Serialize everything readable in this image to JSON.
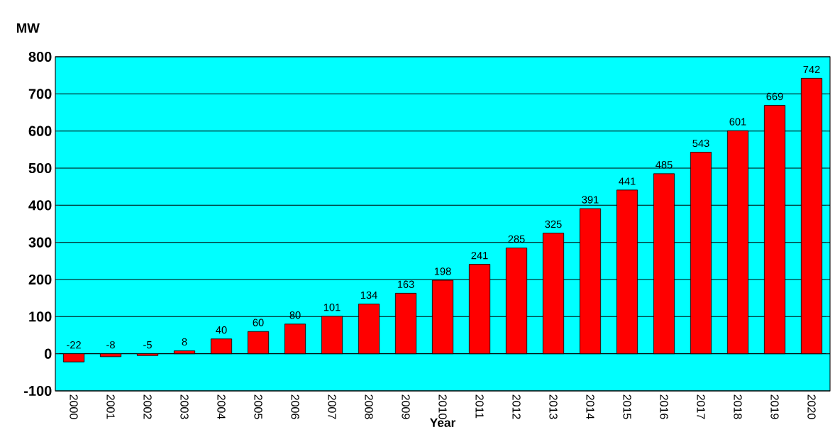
{
  "chart_data": {
    "type": "bar",
    "xlabel": "Year",
    "ylabel": "MW",
    "categories": [
      "2000",
      "2001",
      "2002",
      "2003",
      "2004",
      "2005",
      "2006",
      "2007",
      "2008",
      "2009",
      "2010",
      "2011",
      "2012",
      "2013",
      "2014",
      "2015",
      "2016",
      "2017",
      "2018",
      "2019",
      "2020"
    ],
    "values": [
      -22,
      -8,
      -5,
      8,
      40,
      60,
      80,
      101,
      134,
      163,
      198,
      241,
      285,
      325,
      391,
      441,
      485,
      543,
      601,
      669,
      742
    ],
    "color": "#ff0000",
    "ylim": [
      -100,
      800
    ],
    "yticks": [
      -100,
      0,
      100,
      200,
      300,
      400,
      500,
      600,
      700,
      800
    ],
    "grid": "y",
    "data_labels": true
  }
}
